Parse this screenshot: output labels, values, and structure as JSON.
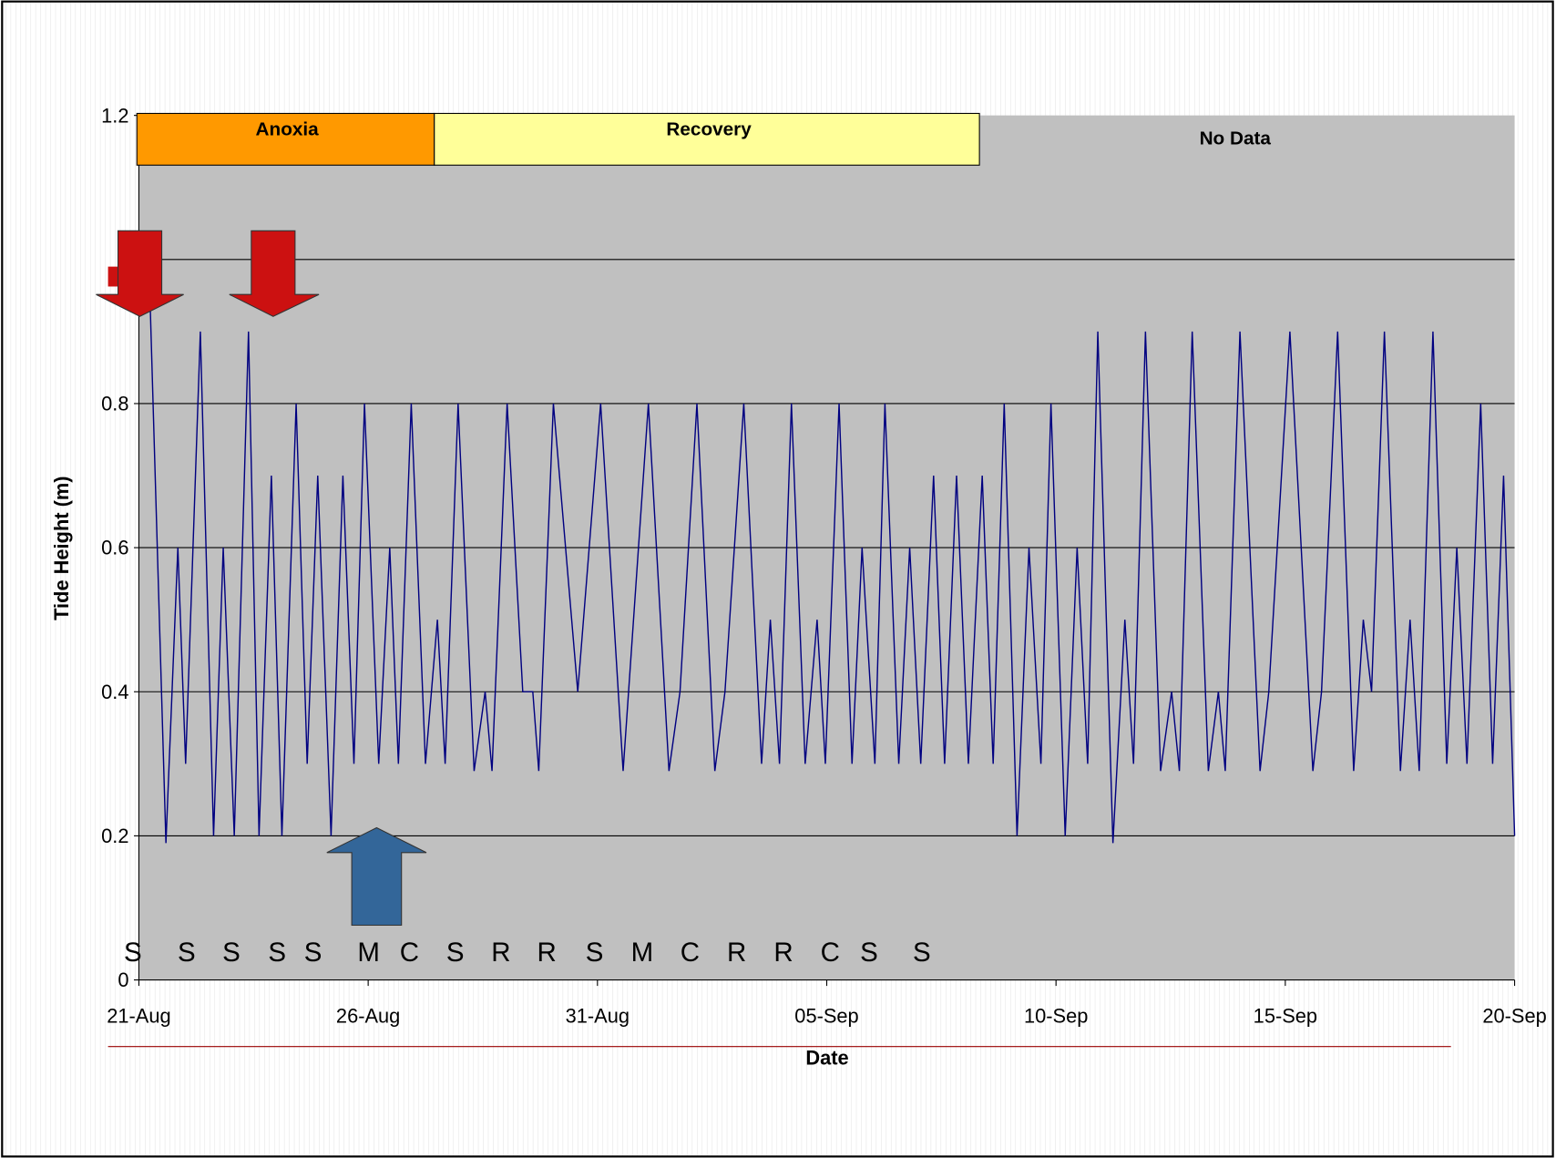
{
  "chart_data": {
    "type": "line",
    "x_label": "Date",
    "y_label": "Tide Height (m)",
    "phases": [
      "Anoxia",
      "Recovery",
      "No Data"
    ],
    "day_codes": [
      "S",
      "S",
      "S",
      "S",
      "S",
      "M",
      "C",
      "S",
      "R",
      "R",
      "S",
      "M",
      "C",
      "R",
      "R",
      "C",
      "S",
      "S"
    ],
    "color": "#000080",
    "plot_background": "#c0c0c0",
    "grid": true,
    "xlim": [
      0,
      30
    ],
    "xticks": [
      {
        "value": 0,
        "label": "21-Aug"
      },
      {
        "value": 5,
        "label": "26-Aug"
      },
      {
        "value": 10,
        "label": "31-Aug"
      },
      {
        "value": 15,
        "label": "05-Sep"
      },
      {
        "value": 20,
        "label": "10-Sep"
      },
      {
        "value": 25,
        "label": "15-Sep"
      },
      {
        "value": 30,
        "label": "20-Sep"
      }
    ],
    "ylim": [
      0,
      1.2
    ],
    "yticks": [
      0,
      0.2,
      0.4,
      0.6,
      0.8,
      1,
      1.2
    ],
    "x": [
      0.24,
      0.59,
      0.85,
      1.02,
      1.34,
      1.63,
      1.84,
      2.08,
      2.39,
      2.62,
      2.89,
      3.12,
      3.43,
      3.67,
      3.9,
      4.19,
      4.45,
      4.69,
      4.92,
      5.23,
      5.47,
      5.66,
      5.94,
      6.25,
      6.51,
      6.68,
      6.96,
      7.31,
      7.55,
      7.7,
      8.03,
      8.37,
      8.59,
      8.72,
      9.04,
      9.57,
      10.07,
      10.56,
      11.11,
      11.56,
      11.8,
      12.17,
      12.56,
      12.78,
      13.19,
      13.58,
      13.77,
      13.97,
      14.23,
      14.53,
      14.79,
      14.97,
      15.27,
      15.55,
      15.77,
      16.05,
      16.27,
      16.57,
      16.81,
      17.05,
      17.33,
      17.57,
      17.83,
      18.09,
      18.39,
      18.63,
      18.87,
      19.15,
      19.41,
      19.67,
      19.89,
      20.2,
      20.46,
      20.69,
      20.91,
      21.24,
      21.5,
      21.69,
      21.95,
      22.28,
      22.52,
      22.69,
      22.97,
      23.32,
      23.54,
      23.69,
      24.01,
      24.45,
      24.64,
      25.1,
      25.6,
      25.79,
      26.14,
      26.49,
      26.7,
      26.88,
      27.16,
      27.51,
      27.72,
      27.92,
      28.22,
      28.52,
      28.74,
      28.96,
      29.26,
      29.52,
      29.76,
      30.0
    ],
    "values": [
      0.95,
      0.19,
      0.6,
      0.3,
      0.9,
      0.2,
      0.6,
      0.2,
      0.9,
      0.2,
      0.7,
      0.2,
      0.8,
      0.3,
      0.7,
      0.2,
      0.7,
      0.3,
      0.8,
      0.3,
      0.6,
      0.3,
      0.8,
      0.3,
      0.5,
      0.3,
      0.8,
      0.29,
      0.4,
      0.29,
      0.8,
      0.4,
      0.4,
      0.29,
      0.8,
      0.4,
      0.8,
      0.29,
      0.8,
      0.29,
      0.4,
      0.8,
      0.29,
      0.4,
      0.8,
      0.3,
      0.5,
      0.3,
      0.8,
      0.3,
      0.5,
      0.3,
      0.8,
      0.3,
      0.6,
      0.3,
      0.8,
      0.3,
      0.6,
      0.3,
      0.7,
      0.3,
      0.7,
      0.3,
      0.7,
      0.3,
      0.8,
      0.2,
      0.6,
      0.3,
      0.8,
      0.2,
      0.6,
      0.3,
      0.9,
      0.19,
      0.5,
      0.3,
      0.9,
      0.29,
      0.4,
      0.29,
      0.9,
      0.29,
      0.4,
      0.29,
      0.9,
      0.29,
      0.4,
      0.9,
      0.29,
      0.4,
      0.9,
      0.29,
      0.5,
      0.4,
      0.9,
      0.29,
      0.5,
      0.29,
      0.9,
      0.3,
      0.6,
      0.3,
      0.8,
      0.3,
      0.7,
      0.2
    ]
  }
}
